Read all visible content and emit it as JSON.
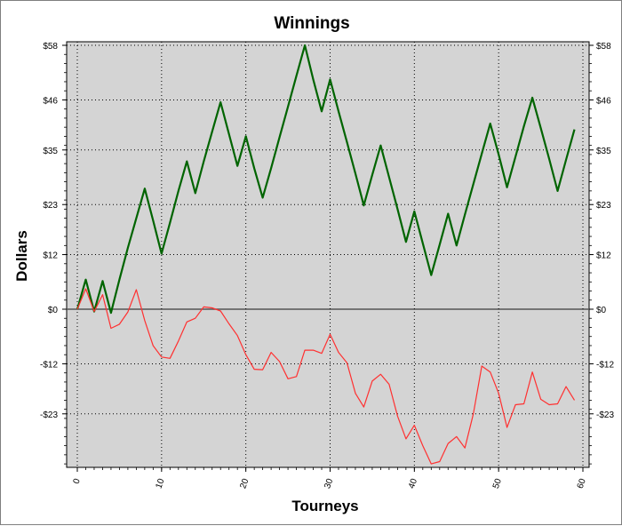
{
  "chart_data": {
    "type": "line",
    "title": "Winnings",
    "xlabel": "Tourneys",
    "ylabel": "Dollars",
    "xlim": [
      0,
      60
    ],
    "ylim": [
      -34,
      58
    ],
    "x_ticks": [
      0,
      10,
      20,
      30,
      40,
      50,
      60
    ],
    "y_ticks": [
      58,
      46,
      35,
      23,
      12,
      0,
      -12,
      -23
    ],
    "y_tick_labels": [
      "$58",
      "$46",
      "$35",
      "$23",
      "$12",
      "$0",
      "-$12",
      "-$23"
    ],
    "grid": true,
    "plot_background": "#d4d4d4",
    "series": [
      {
        "color": "#006400",
        "x": [
          0,
          1,
          2,
          3,
          4,
          5,
          6,
          7,
          8,
          9,
          10,
          11,
          12,
          13,
          14,
          15,
          16,
          17,
          18,
          19,
          20,
          21,
          22,
          23,
          24,
          25,
          26,
          27,
          28,
          29,
          30,
          31,
          32,
          33,
          34,
          35,
          36,
          37,
          38,
          39,
          40,
          41,
          42,
          43,
          44,
          45,
          46,
          47,
          48,
          49,
          50,
          51,
          52,
          53,
          54,
          55,
          56,
          57,
          58,
          59
        ],
        "values": [
          0,
          6.5,
          -0.5,
          6.2,
          -0.8,
          6.5,
          13.5,
          20.0,
          26.5,
          19.5,
          12.2,
          19.0,
          26.0,
          32.5,
          25.5,
          32.5,
          39.0,
          45.5,
          38.5,
          31.5,
          38.0,
          31.0,
          24.5,
          31.0,
          37.8,
          44.5,
          51.3,
          58.0,
          50.5,
          43.5,
          50.5,
          43.5,
          36.7,
          29.8,
          22.8,
          29.5,
          36.0,
          29.0,
          22.0,
          14.8,
          21.5,
          14.5,
          7.5,
          14.2,
          21.0,
          14.0,
          20.8,
          27.5,
          34.2,
          40.8,
          34.0,
          26.8,
          33.5,
          40.2,
          46.5,
          39.8,
          33.0,
          26.0,
          32.8,
          39.5
        ]
      },
      {
        "color": "#ff3030",
        "x": [
          0,
          1,
          2,
          3,
          4,
          5,
          6,
          7,
          8,
          9,
          10,
          11,
          12,
          13,
          14,
          15,
          16,
          17,
          18,
          19,
          20,
          21,
          22,
          23,
          24,
          25,
          26,
          27,
          28,
          29,
          30,
          31,
          32,
          33,
          34,
          35,
          36,
          37,
          38,
          39,
          40,
          41,
          42,
          43,
          44,
          45,
          46,
          47,
          48,
          49,
          50,
          51,
          52,
          53,
          54,
          55,
          56,
          57,
          58,
          59
        ],
        "values": [
          0,
          4.5,
          -0.5,
          3.2,
          -4.2,
          -3.3,
          -0.6,
          4.3,
          -2.5,
          -8.0,
          -10.5,
          -10.8,
          -7.0,
          -2.8,
          -2.0,
          0.5,
          0.3,
          -0.4,
          -3.2,
          -5.8,
          -10.0,
          -13.2,
          -13.3,
          -9.5,
          -11.5,
          -15.3,
          -14.8,
          -9.0,
          -9.0,
          -9.7,
          -5.5,
          -9.5,
          -11.8,
          -18.5,
          -21.5,
          -15.8,
          -14.3,
          -16.5,
          -23.5,
          -28.5,
          -25.5,
          -30.0,
          -34.0,
          -33.5,
          -29.5,
          -28.0,
          -30.5,
          -23.0,
          -12.5,
          -13.8,
          -18.5,
          -26.0,
          -21.0,
          -20.8,
          -13.8,
          -19.8,
          -21.0,
          -20.8,
          -17.0,
          -20.0
        ]
      }
    ]
  }
}
